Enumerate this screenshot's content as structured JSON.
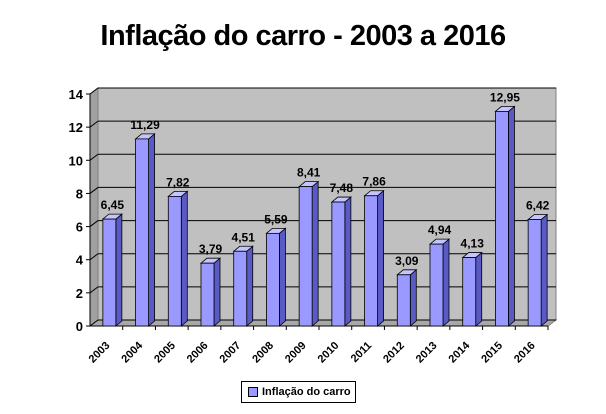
{
  "chart_data": {
    "type": "bar",
    "title": "Inflação do carro - 2003 a 2016",
    "categories": [
      "2003",
      "2004",
      "2005",
      "2006",
      "2007",
      "2008",
      "2009",
      "2010",
      "2011",
      "2012",
      "2013",
      "2014",
      "2015",
      "2016"
    ],
    "series": [
      {
        "name": "Inflação do carro",
        "values": [
          6.45,
          11.29,
          7.82,
          3.79,
          4.51,
          5.59,
          8.41,
          7.48,
          7.86,
          3.09,
          4.94,
          4.13,
          12.95,
          6.42
        ],
        "labels": [
          "6,45",
          "11,29",
          "7,82",
          "3,79",
          "4,51",
          "5,59",
          "8,41",
          "7,48",
          "7,86",
          "3,09",
          "4,94",
          "4,13",
          "12,95",
          "6,42"
        ]
      }
    ],
    "yticks": [
      "0",
      "2",
      "4",
      "6",
      "8",
      "10",
      "12",
      "14"
    ],
    "ylim": [
      0,
      14
    ],
    "grid": true,
    "legend": "bottom",
    "colors": {
      "bar": "#9999ff",
      "bar_side": "#5a5ac4",
      "bar_top": "#c4c4ff",
      "plot_bg": "#c0c0c0"
    }
  }
}
